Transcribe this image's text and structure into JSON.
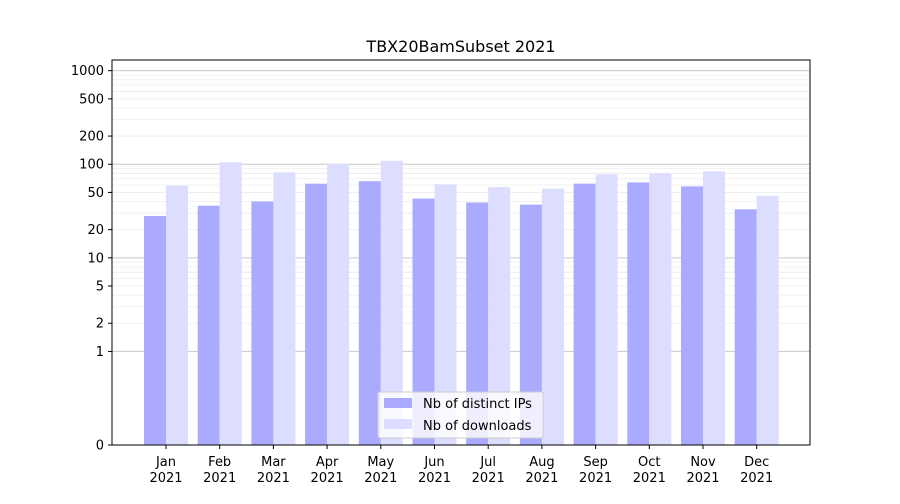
{
  "chart_data": {
    "type": "bar",
    "title": "TBX20BamSubset 2021",
    "xlabel": "",
    "ylabel": "",
    "yscale": "symlog",
    "ylim": [
      0,
      1300
    ],
    "y_ticks": [
      {
        "value": 0,
        "label": "0"
      },
      {
        "value": 1,
        "label": "1"
      },
      {
        "value": 2,
        "label": "2"
      },
      {
        "value": 5,
        "label": "5"
      },
      {
        "value": 10,
        "label": "10"
      },
      {
        "value": 20,
        "label": "20"
      },
      {
        "value": 50,
        "label": "50"
      },
      {
        "value": 100,
        "label": "100"
      },
      {
        "value": 200,
        "label": "200"
      },
      {
        "value": 500,
        "label": "500"
      },
      {
        "value": 1000,
        "label": "1000"
      }
    ],
    "grid": true,
    "legend_position": "bottom-center",
    "categories": [
      [
        "Jan",
        "2021"
      ],
      [
        "Feb",
        "2021"
      ],
      [
        "Mar",
        "2021"
      ],
      [
        "Apr",
        "2021"
      ],
      [
        "May",
        "2021"
      ],
      [
        "Jun",
        "2021"
      ],
      [
        "Jul",
        "2021"
      ],
      [
        "Aug",
        "2021"
      ],
      [
        "Sep",
        "2021"
      ],
      [
        "Oct",
        "2021"
      ],
      [
        "Nov",
        "2021"
      ],
      [
        "Dec",
        "2021"
      ]
    ],
    "series": [
      {
        "name": "Nb of distinct IPs",
        "color": "#aaaaff",
        "values": [
          28,
          36,
          40,
          62,
          66,
          43,
          39,
          37,
          62,
          64,
          58,
          33
        ]
      },
      {
        "name": "Nb of downloads",
        "color": "#ddddff",
        "values": [
          59,
          105,
          82,
          101,
          109,
          61,
          57,
          55,
          78,
          80,
          84,
          46
        ]
      }
    ]
  }
}
